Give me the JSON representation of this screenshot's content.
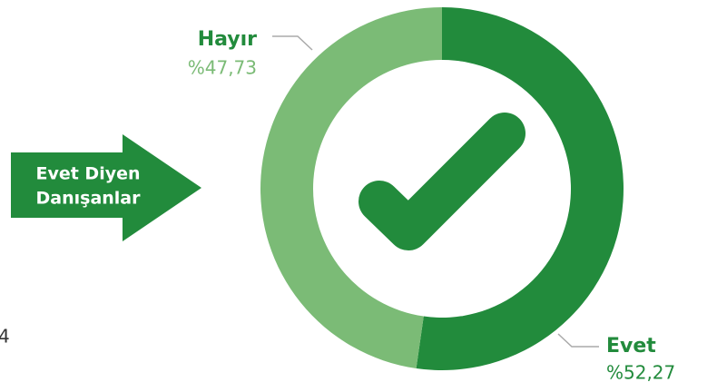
{
  "chart_data": {
    "type": "pie",
    "donut": true,
    "categories": [
      "Evet",
      "Hayır"
    ],
    "values": [
      52.27,
      47.73
    ],
    "value_labels": [
      "%52,27",
      "%47,73"
    ],
    "colors": [
      "#228b3c",
      "#7bbb76"
    ],
    "annotation": [
      "Evet Diyen",
      "Danışanlar"
    ],
    "clipped_label": "4"
  }
}
